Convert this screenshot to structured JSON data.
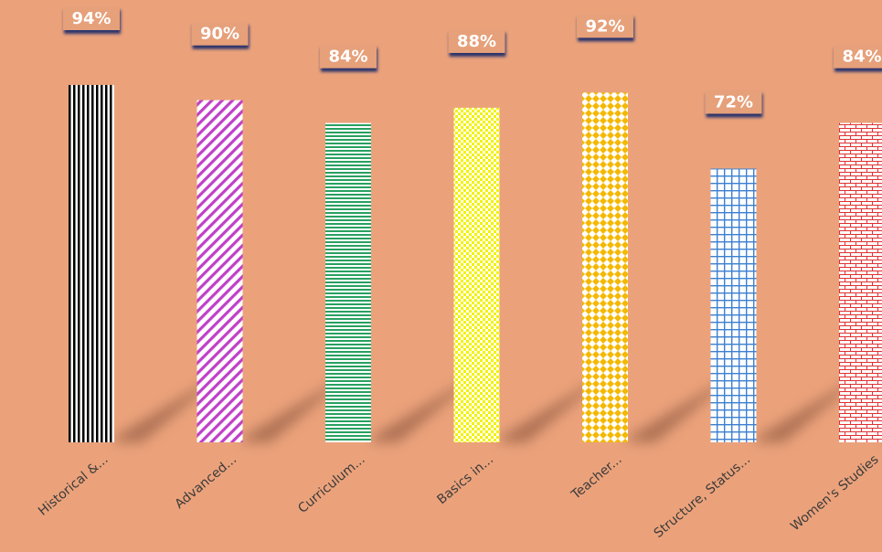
{
  "chart_data": {
    "type": "bar",
    "title": "",
    "xlabel": "",
    "ylabel": "",
    "ylim": [
      0,
      100
    ],
    "grid": false,
    "legend": "none",
    "categories": [
      "Historical &...",
      "Advanced...",
      "Curriculum...",
      "Basics in...",
      "Teacher...",
      "Structure, Status...",
      "Women's Studies"
    ],
    "values": [
      94,
      90,
      84,
      88,
      92,
      72,
      84
    ],
    "data_labels": [
      "94%",
      "90%",
      "84%",
      "88%",
      "92%",
      "72%",
      "84%"
    ],
    "bar_patterns": [
      "vertical-lines",
      "diagonal-lines",
      "horizontal-lines",
      "checker",
      "diamond",
      "grid",
      "brick"
    ],
    "bar_colors": [
      "#000000",
      "#C040C8",
      "#28A060",
      "#F2F200",
      "#F5B800",
      "#3C80D0",
      "#E03030"
    ],
    "background_color": "#EBA27B"
  }
}
